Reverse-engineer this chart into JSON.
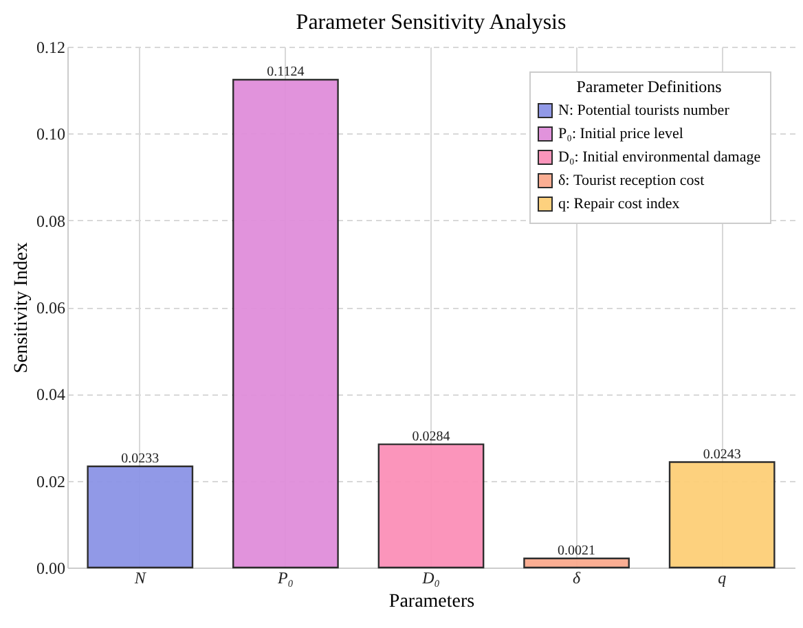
{
  "chart_data": {
    "type": "bar",
    "title": "Parameter Sensitivity Analysis",
    "xlabel": "Parameters",
    "ylabel": "Sensitivity Index",
    "legend_title": "Parameter Definitions",
    "categories": [
      "N",
      "P₀",
      "D₀",
      "δ",
      "q"
    ],
    "series": [
      {
        "name": "N: Potential tourists number",
        "color": "#8c94e6",
        "values": [
          0.0233,
          null,
          null,
          null,
          null
        ]
      },
      {
        "name": "P₀: Initial price level",
        "color": "#e08edb",
        "values": [
          null,
          0.1124,
          null,
          null,
          null
        ]
      },
      {
        "name": "D₀: Initial environmental damage",
        "color": "#fb90b8",
        "values": [
          null,
          null,
          0.0284,
          null,
          null
        ]
      },
      {
        "name": "δ: Tourist reception cost",
        "color": "#fbaa8e",
        "values": [
          null,
          null,
          null,
          0.0021,
          null
        ]
      },
      {
        "name": "q: Repair cost index",
        "color": "#fdcf78",
        "values": [
          null,
          null,
          null,
          null,
          0.0243
        ]
      }
    ],
    "ylim": [
      0,
      0.12
    ],
    "yticks": [
      {
        "value": 0,
        "label": "0.00"
      },
      {
        "value": 0.02,
        "label": "0.02"
      },
      {
        "value": 0.04,
        "label": "0.04"
      },
      {
        "value": 0.06,
        "label": "0.06"
      },
      {
        "value": 0.08,
        "label": "0.08"
      },
      {
        "value": 0.1,
        "label": "0.10"
      },
      {
        "value": 0.12,
        "label": "0.12"
      }
    ],
    "grid": true,
    "legend": "top right",
    "data_labels": true
  }
}
